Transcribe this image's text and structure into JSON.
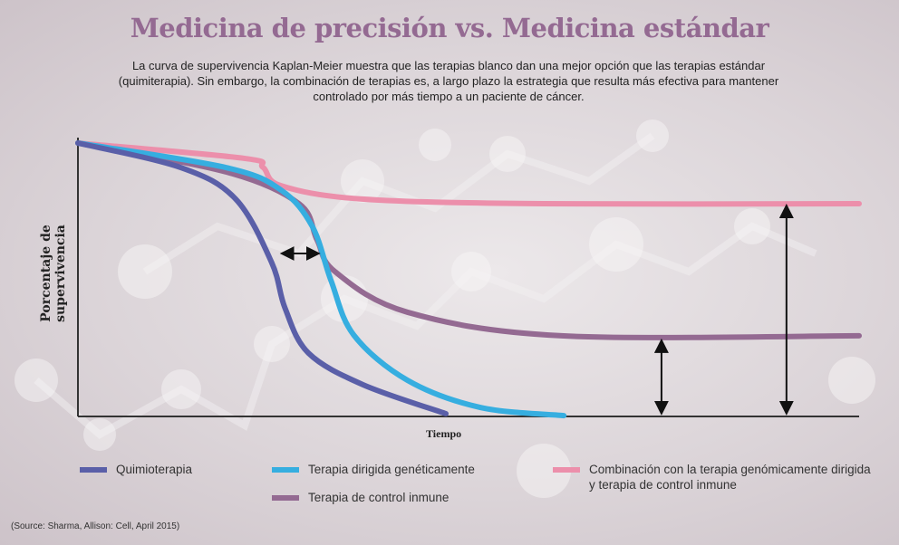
{
  "title": "Medicina de precisión vs. Medicina estándar",
  "subtitle": "La curva de supervivencia  Kaplan-Meier muestra que las terapias blanco dan una mejor opción que las terapias estándar (quimiterapia). Sin embargo, la combinación de terapias es, a largo plazo la estrategia que resulta más efectiva para mantener controlado por más tiempo a un paciente de cáncer.",
  "source": "(Source: Sharma, Allison: Cell, April 2015)",
  "chart_data": {
    "type": "line",
    "title": "Medicina de precisión vs. Medicina estándar",
    "xlabel": "Tiempo",
    "ylabel": "Porcentaje de supervivencia",
    "xlim": [
      0,
      100
    ],
    "ylim": [
      0,
      100
    ],
    "grid": false,
    "legend_placement": "bottom",
    "series": [
      {
        "name": "Quimioterapia",
        "color": "#5a5fa8",
        "x": [
          0,
          13.2,
          20.2,
          24.8,
          26.5,
          29.5,
          36.5,
          47.1
        ],
        "y": [
          100,
          91,
          79.5,
          56.3,
          39.7,
          23.2,
          11.6,
          1
        ]
      },
      {
        "name": "Terapia dirigida genéticamente",
        "color": "#36aee0",
        "x": [
          0,
          19,
          26,
          30,
          32.4,
          35.3,
          42.2,
          51.5,
          62.2
        ],
        "y": [
          100,
          91,
          82.8,
          69.5,
          49.7,
          29.8,
          13.2,
          3.3,
          0.3
        ]
      },
      {
        "name": "Terapia de control inmune",
        "color": "#946a92",
        "x": [
          0,
          19,
          28.3,
          30.6,
          32.9,
          42.2,
          61.9,
          100
        ],
        "y": [
          100,
          89.4,
          77.8,
          64.6,
          53,
          38.1,
          29.5,
          29.5
        ]
      },
      {
        "name": "Combinación con la terapia genómicamente dirigida y terapia de control inmune",
        "color": "#ec8fab",
        "x": [
          0,
          21.3,
          23.7,
          26,
          36.4,
          59.6,
          100
        ],
        "y": [
          100,
          94.4,
          91.1,
          84.4,
          79.5,
          77.8,
          77.8
        ]
      }
    ],
    "annotations": [
      {
        "type": "double-arrow-vertical",
        "x": 90.7,
        "y_from": 1.7,
        "y_to": 76.5
      },
      {
        "type": "double-arrow-vertical",
        "x": 74.7,
        "y_from": 1.7,
        "y_to": 27.2
      },
      {
        "type": "double-arrow-horizontal",
        "y": 59.6,
        "x_from": 26.3,
        "x_to": 30.6
      }
    ]
  }
}
